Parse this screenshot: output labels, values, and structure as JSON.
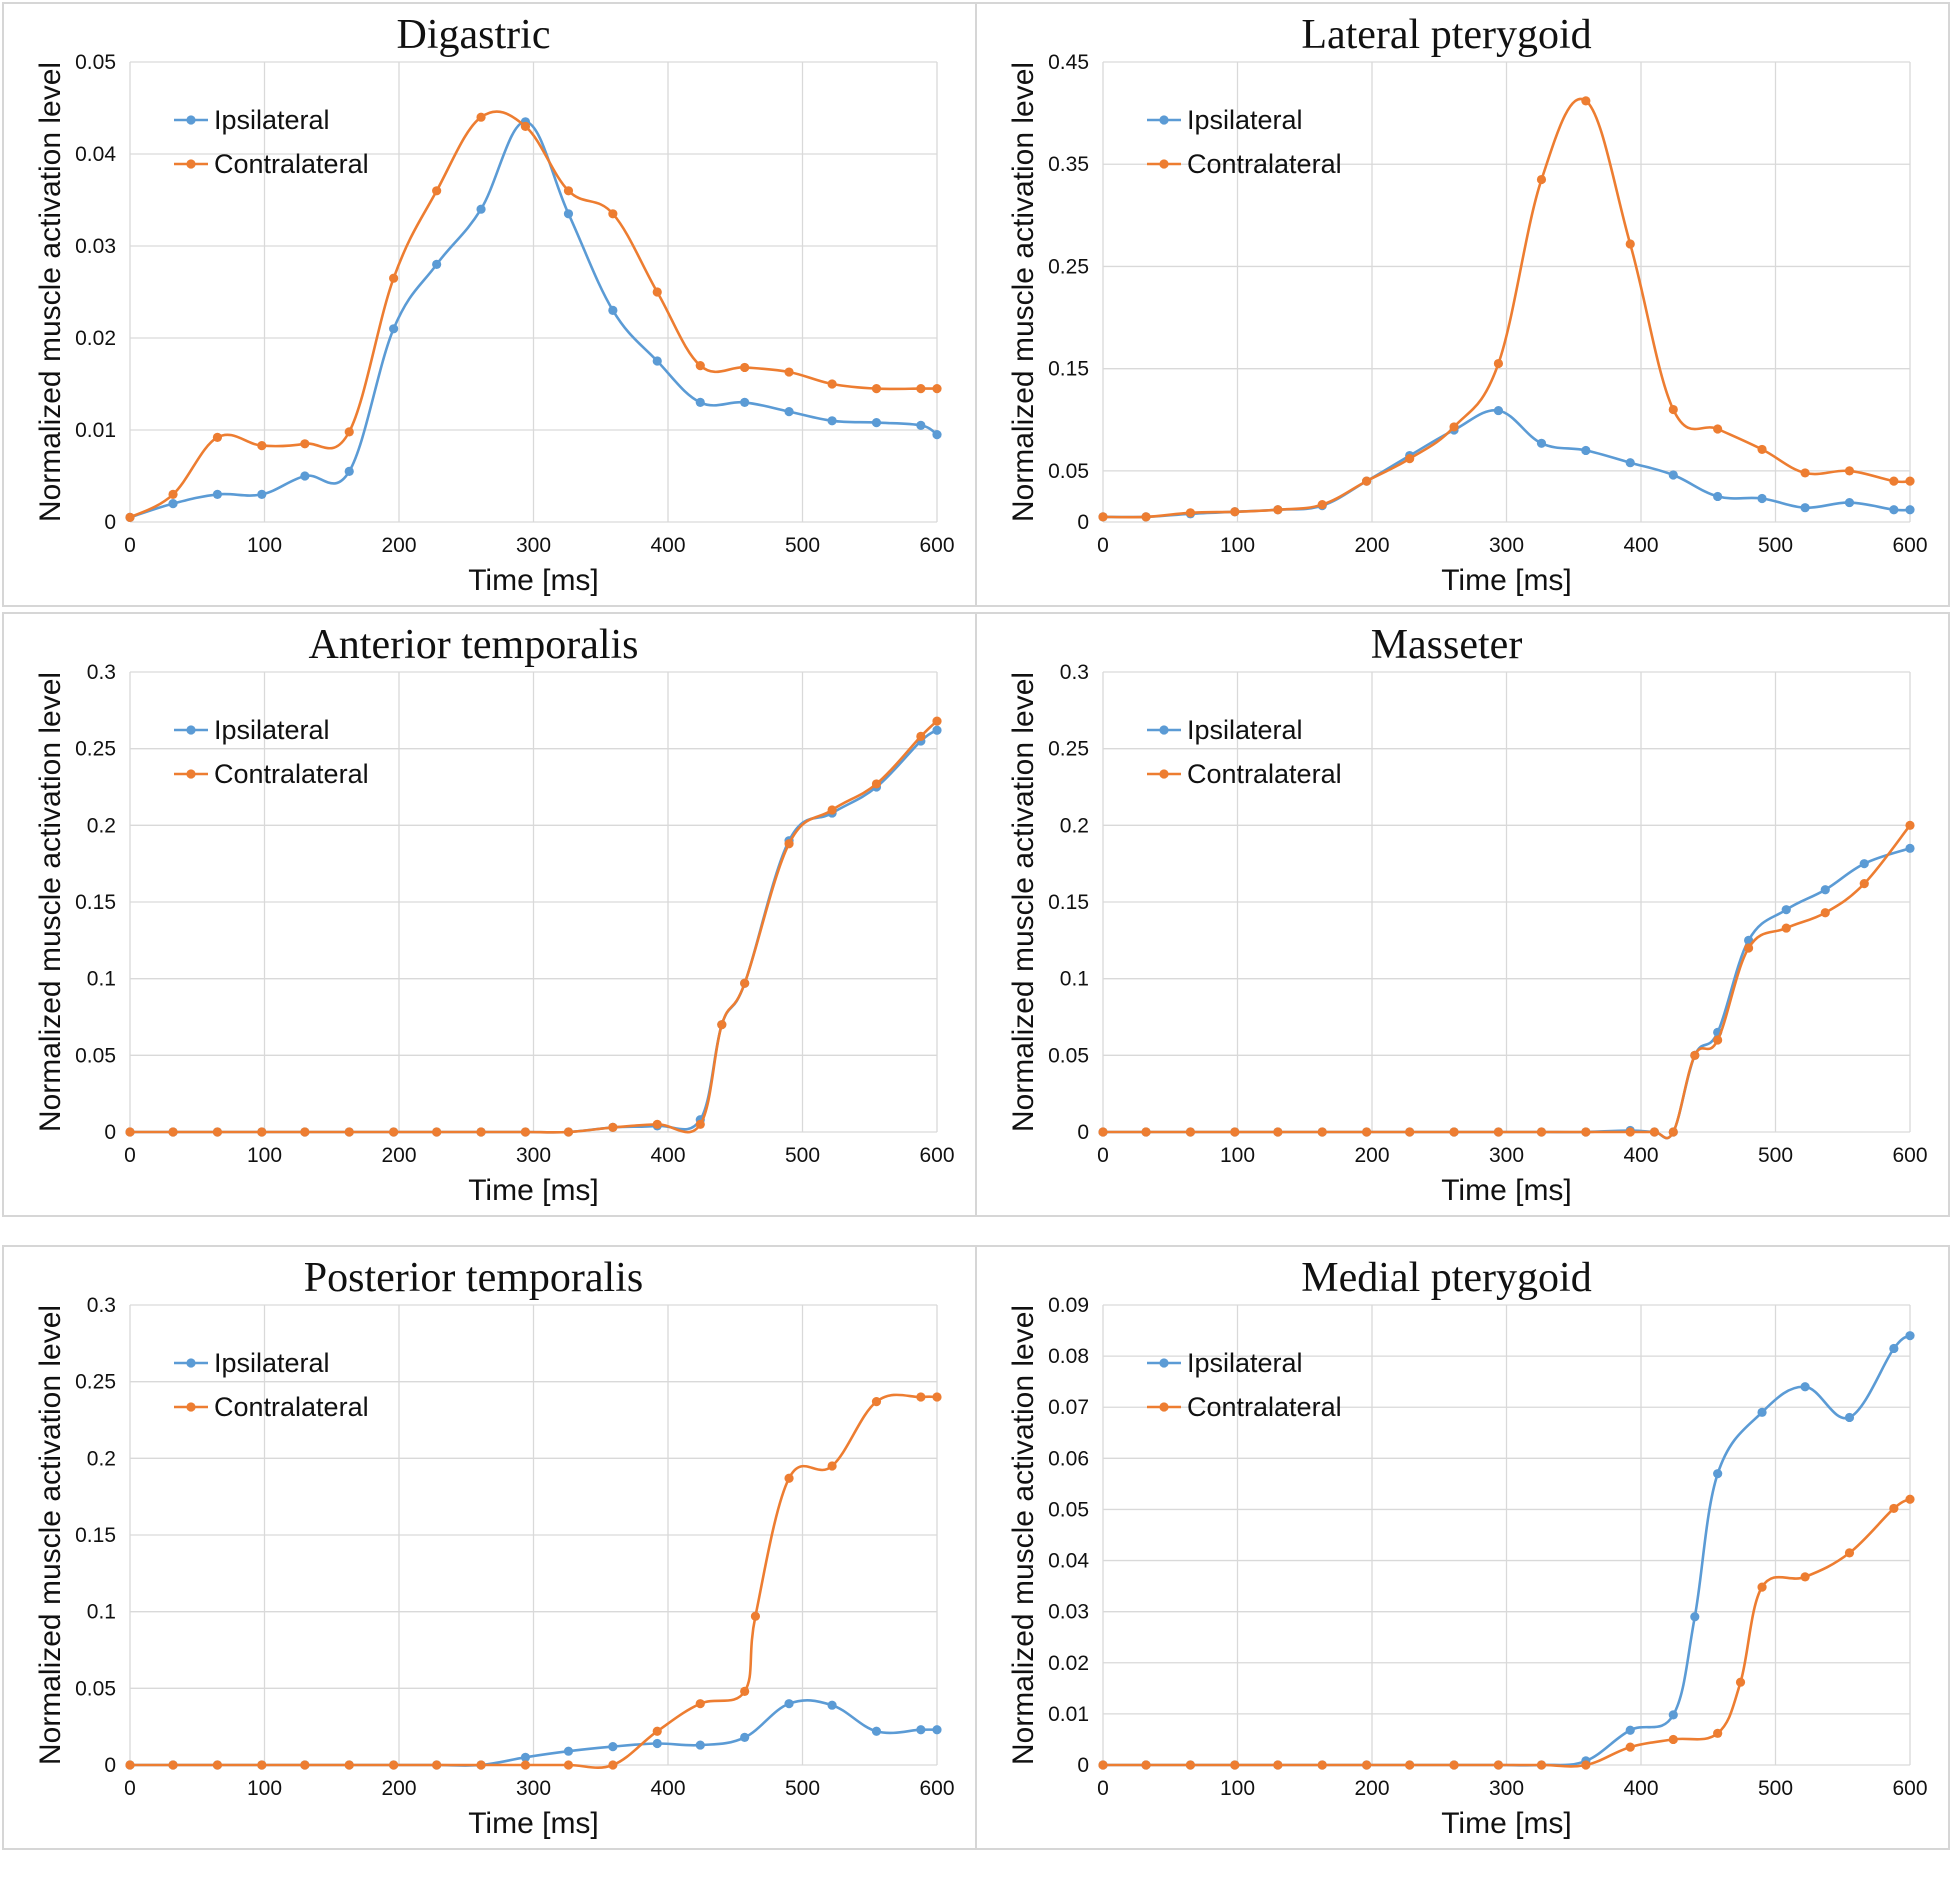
{
  "colors": {
    "ipsilateral": "#5b9bd5",
    "contralateral": "#ed7d31",
    "grid": "#d9d9d9"
  },
  "chart_data": [
    {
      "type": "line",
      "title": "Digastric",
      "xlabel": "Time [ms]",
      "ylabel": "Normalized muscle activation level",
      "xlim": [
        0,
        600
      ],
      "ylim": [
        0,
        0.05
      ],
      "xticks": [
        0,
        100,
        200,
        300,
        400,
        500,
        600
      ],
      "yticks": [
        0,
        0.01,
        0.02,
        0.03,
        0.04,
        0.05
      ],
      "ytick_labels": [
        "0",
        "0.01",
        "0.02",
        "0.03",
        "0.04",
        "0.05"
      ],
      "grid": true,
      "legend": "top-left",
      "series": [
        {
          "name": "Ipsilateral",
          "x": [
            0,
            32,
            65,
            98,
            130,
            163,
            196,
            228,
            261,
            294,
            326,
            359,
            392,
            424,
            457,
            490,
            522,
            555,
            588,
            600
          ],
          "y": [
            0.0005,
            0.002,
            0.003,
            0.003,
            0.005,
            0.0055,
            0.021,
            0.028,
            0.034,
            0.0435,
            0.0335,
            0.023,
            0.0175,
            0.013,
            0.013,
            0.012,
            0.011,
            0.0108,
            0.0105,
            0.0095
          ]
        },
        {
          "name": "Contralateral",
          "x": [
            0,
            32,
            65,
            98,
            130,
            163,
            196,
            228,
            261,
            294,
            326,
            359,
            392,
            424,
            457,
            490,
            522,
            555,
            588,
            600
          ],
          "y": [
            0.0005,
            0.003,
            0.0092,
            0.0083,
            0.0085,
            0.0098,
            0.0265,
            0.036,
            0.044,
            0.043,
            0.036,
            0.0335,
            0.025,
            0.017,
            0.0168,
            0.0163,
            0.015,
            0.0145,
            0.0145,
            0.0145
          ]
        }
      ]
    },
    {
      "type": "line",
      "title": "Lateral pterygoid",
      "xlabel": "Time [ms]",
      "ylabel": "Normalized muscle activation level",
      "xlim": [
        0,
        600
      ],
      "ylim": [
        0,
        0.45
      ],
      "xticks": [
        0,
        100,
        200,
        300,
        400,
        500,
        600
      ],
      "yticks": [
        0,
        0.05,
        0.15,
        0.25,
        0.35,
        0.45
      ],
      "ytick_labels": [
        "0",
        "0.05",
        "0.15",
        "0.25",
        "0.35",
        "0.45"
      ],
      "grid": true,
      "legend": "top-left",
      "series": [
        {
          "name": "Ipsilateral",
          "x": [
            0,
            32,
            65,
            98,
            130,
            163,
            196,
            228,
            261,
            294,
            326,
            359,
            392,
            424,
            457,
            490,
            522,
            555,
            588,
            600
          ],
          "y": [
            0.005,
            0.005,
            0.008,
            0.01,
            0.012,
            0.016,
            0.04,
            0.065,
            0.09,
            0.109,
            0.077,
            0.07,
            0.058,
            0.046,
            0.025,
            0.023,
            0.014,
            0.019,
            0.012,
            0.012
          ]
        },
        {
          "name": "Contralateral",
          "x": [
            0,
            32,
            65,
            98,
            130,
            163,
            196,
            228,
            261,
            294,
            326,
            359,
            392,
            424,
            457,
            490,
            522,
            555,
            588,
            600
          ],
          "y": [
            0.005,
            0.005,
            0.009,
            0.01,
            0.012,
            0.017,
            0.04,
            0.062,
            0.093,
            0.155,
            0.335,
            0.412,
            0.272,
            0.11,
            0.091,
            0.071,
            0.048,
            0.05,
            0.04,
            0.04
          ]
        }
      ]
    },
    {
      "type": "line",
      "title": "Anterior temporalis",
      "xlabel": "Time [ms]",
      "ylabel": "Normalized muscle activation level",
      "xlim": [
        0,
        600
      ],
      "ylim": [
        0,
        0.3
      ],
      "xticks": [
        0,
        100,
        200,
        300,
        400,
        500,
        600
      ],
      "yticks": [
        0,
        0.05,
        0.1,
        0.15,
        0.2,
        0.25,
        0.3
      ],
      "ytick_labels": [
        "0",
        "0.05",
        "0.1",
        "0.15",
        "0.2",
        "0.25",
        "0.3"
      ],
      "grid": true,
      "legend": "top-left",
      "series": [
        {
          "name": "Ipsilateral",
          "x": [
            0,
            32,
            65,
            98,
            130,
            163,
            196,
            228,
            261,
            294,
            326,
            359,
            392,
            424,
            440,
            457,
            490,
            522,
            555,
            588,
            600
          ],
          "y": [
            0.0,
            0.0,
            0.0,
            0.0,
            0.0,
            0.0,
            0.0,
            0.0,
            0.0,
            0.0,
            0.0,
            0.003,
            0.004,
            0.008,
            0.07,
            0.097,
            0.19,
            0.208,
            0.225,
            0.255,
            0.262
          ]
        },
        {
          "name": "Contralateral",
          "x": [
            0,
            32,
            65,
            98,
            130,
            163,
            196,
            228,
            261,
            294,
            326,
            359,
            392,
            424,
            440,
            457,
            490,
            522,
            555,
            588,
            600
          ],
          "y": [
            0.0,
            0.0,
            0.0,
            0.0,
            0.0,
            0.0,
            0.0,
            0.0,
            0.0,
            0.0,
            0.0,
            0.003,
            0.005,
            0.005,
            0.07,
            0.097,
            0.188,
            0.21,
            0.227,
            0.258,
            0.268
          ]
        }
      ]
    },
    {
      "type": "line",
      "title": "Masseter",
      "xlabel": "Time [ms]",
      "ylabel": "Normalized muscle activation level",
      "xlim": [
        0,
        600
      ],
      "ylim": [
        0,
        0.3
      ],
      "xticks": [
        0,
        100,
        200,
        300,
        400,
        500,
        600
      ],
      "yticks": [
        0,
        0.05,
        0.1,
        0.15,
        0.2,
        0.25,
        0.3
      ],
      "ytick_labels": [
        "0",
        "0.05",
        "0.1",
        "0.15",
        "0.2",
        "0.25",
        "0.3"
      ],
      "grid": true,
      "legend": "top-left",
      "series": [
        {
          "name": "Ipsilateral",
          "x": [
            0,
            32,
            65,
            98,
            130,
            163,
            196,
            228,
            261,
            294,
            326,
            359,
            392,
            410,
            424,
            440,
            457,
            480,
            508,
            537,
            566,
            600
          ],
          "y": [
            0.0,
            0.0,
            0.0,
            0.0,
            0.0,
            0.0,
            0.0,
            0.0,
            0.0,
            0.0,
            0.0,
            0.0,
            0.001,
            0.0,
            0.0,
            0.05,
            0.065,
            0.125,
            0.145,
            0.158,
            0.175,
            0.185
          ]
        },
        {
          "name": "Contralateral",
          "x": [
            0,
            32,
            65,
            98,
            130,
            163,
            196,
            228,
            261,
            294,
            326,
            359,
            392,
            410,
            424,
            440,
            457,
            480,
            508,
            537,
            566,
            600
          ],
          "y": [
            0.0,
            0.0,
            0.0,
            0.0,
            0.0,
            0.0,
            0.0,
            0.0,
            0.0,
            0.0,
            0.0,
            0.0,
            0.0,
            0.0,
            0.0,
            0.05,
            0.06,
            0.12,
            0.133,
            0.143,
            0.162,
            0.2
          ]
        }
      ]
    },
    {
      "type": "line",
      "title": "Posterior temporalis",
      "xlabel": "Time [ms]",
      "ylabel": "Normalized muscle activation level",
      "xlim": [
        0,
        600
      ],
      "ylim": [
        0,
        0.3
      ],
      "xticks": [
        0,
        100,
        200,
        300,
        400,
        500,
        600
      ],
      "yticks": [
        0,
        0.05,
        0.1,
        0.15,
        0.2,
        0.25,
        0.3
      ],
      "ytick_labels": [
        "0",
        "0.05",
        "0.1",
        "0.15",
        "0.2",
        "0.25",
        "0.3"
      ],
      "grid": true,
      "legend": "top-left",
      "series": [
        {
          "name": "Ipsilateral",
          "x": [
            0,
            32,
            65,
            98,
            130,
            163,
            196,
            228,
            261,
            294,
            326,
            359,
            392,
            424,
            457,
            490,
            522,
            555,
            588,
            600
          ],
          "y": [
            0.0,
            0.0,
            0.0,
            0.0,
            0.0,
            0.0,
            0.0,
            0.0,
            0.0,
            0.005,
            0.009,
            0.012,
            0.014,
            0.013,
            0.018,
            0.04,
            0.039,
            0.022,
            0.023,
            0.023
          ]
        },
        {
          "name": "Contralateral",
          "x": [
            0,
            32,
            65,
            98,
            130,
            163,
            196,
            228,
            261,
            294,
            326,
            359,
            392,
            424,
            457,
            465,
            490,
            522,
            555,
            588,
            600
          ],
          "y": [
            0.0,
            0.0,
            0.0,
            0.0,
            0.0,
            0.0,
            0.0,
            0.0,
            0.0,
            0.0,
            0.0,
            0.0,
            0.022,
            0.04,
            0.048,
            0.097,
            0.187,
            0.195,
            0.237,
            0.24,
            0.24
          ]
        }
      ]
    },
    {
      "type": "line",
      "title": "Medial pterygoid",
      "xlabel": "Time [ms]",
      "ylabel": "Normalized muscle activation level",
      "xlim": [
        0,
        600
      ],
      "ylim": [
        0,
        0.09
      ],
      "xticks": [
        0,
        100,
        200,
        300,
        400,
        500,
        600
      ],
      "yticks": [
        0,
        0.01,
        0.02,
        0.03,
        0.04,
        0.05,
        0.06,
        0.07,
        0.08,
        0.09
      ],
      "ytick_labels": [
        "0",
        "0.01",
        "0.02",
        "0.03",
        "0.04",
        "0.05",
        "0.06",
        "0.07",
        "0.08",
        "0.09"
      ],
      "grid": true,
      "legend": "top-left",
      "series": [
        {
          "name": "Ipsilateral",
          "x": [
            0,
            32,
            65,
            98,
            130,
            163,
            196,
            228,
            261,
            294,
            326,
            359,
            392,
            424,
            440,
            457,
            490,
            522,
            555,
            588,
            600
          ],
          "y": [
            0.0,
            0.0,
            0.0,
            0.0,
            0.0,
            0.0,
            0.0,
            0.0,
            0.0,
            0.0,
            0.0,
            0.0008,
            0.0068,
            0.0098,
            0.029,
            0.057,
            0.069,
            0.074,
            0.068,
            0.0815,
            0.084
          ]
        },
        {
          "name": "Contralateral",
          "x": [
            0,
            32,
            65,
            98,
            130,
            163,
            196,
            228,
            261,
            294,
            326,
            359,
            392,
            424,
            457,
            474,
            490,
            522,
            555,
            588,
            600
          ],
          "y": [
            0.0,
            0.0,
            0.0,
            0.0,
            0.0,
            0.0,
            0.0,
            0.0,
            0.0,
            0.0,
            0.0,
            0.0,
            0.0035,
            0.005,
            0.0062,
            0.0162,
            0.0348,
            0.0368,
            0.0415,
            0.0502,
            0.052
          ]
        }
      ]
    }
  ]
}
